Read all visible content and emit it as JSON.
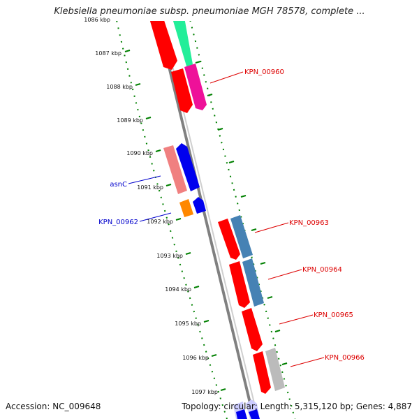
{
  "title": "Klebsiella pneumoniae subsp. pneumoniae MGH 78578, complete ...",
  "footer": {
    "accession": "Accession: NC_009648",
    "summary": "Topology: circular; Length: 5,315,120 bp; Genes: 4,887"
  },
  "ticks": [
    "1086 kbp",
    "1087 kbp",
    "1088 kbp",
    "1089 kbp",
    "1090 kbp",
    "1091 kbp",
    "1092 kbp",
    "1093 kbp",
    "1094 kbp",
    "1095 kbp",
    "1096 kbp",
    "1097 kbp"
  ],
  "gene_labels": [
    {
      "text": "KPN_00960",
      "color": "#dd0000"
    },
    {
      "text": "asnC",
      "color": "#0000cc"
    },
    {
      "text": "KPN_00962",
      "color": "#0000cc"
    },
    {
      "text": "KPN_00963",
      "color": "#dd0000"
    },
    {
      "text": "KPN_00964",
      "color": "#dd0000"
    },
    {
      "text": "KPN_00965",
      "color": "#dd0000"
    },
    {
      "text": "KPN_00966",
      "color": "#dd0000"
    }
  ],
  "colors": {
    "red": "#ff0000",
    "mint": "#22ee99",
    "magenta": "#ee1199",
    "pink": "#f08080",
    "blue": "#0000ee",
    "orange": "#ff8800",
    "steel": "#4682b4",
    "gray": "#bbbbbb",
    "lavender": "#ccccff",
    "axis": "#808080",
    "ticks": "#008000"
  }
}
